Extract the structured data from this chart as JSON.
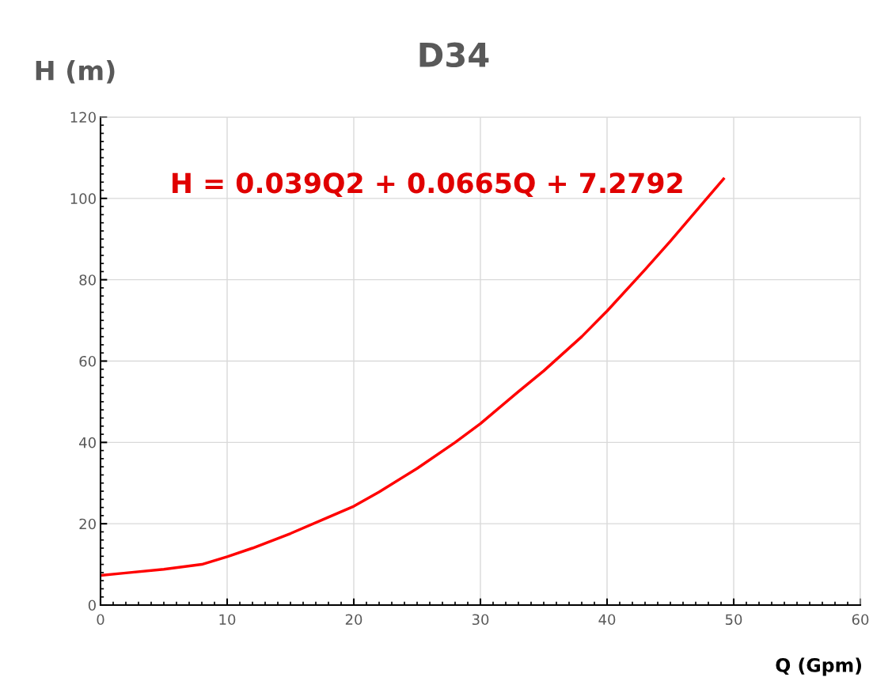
{
  "chart_data": {
    "type": "line",
    "title": "D34",
    "xlabel": "Q (Gpm)",
    "ylabel": "H (m)",
    "annotations": [
      "H = 0.039Q2 + 0.0665Q + 7.2792"
    ],
    "x": [
      0,
      2,
      5,
      8,
      10,
      12,
      15,
      18,
      20,
      22,
      25,
      28,
      30,
      33,
      35,
      38,
      40,
      43,
      45,
      47,
      49.2
    ],
    "series": [
      {
        "color": "#ff0000",
        "values": [
          7.3,
          7.9,
          8.8,
          10.0,
          11.9,
          14.0,
          17.6,
          21.6,
          24.3,
          27.8,
          33.6,
          40.0,
          44.6,
          52.5,
          57.6,
          66.0,
          72.3,
          82.5,
          89.5,
          96.8,
          104.8
        ]
      }
    ],
    "xlim": [
      0,
      60
    ],
    "ylim": [
      0,
      120
    ],
    "xticks": [
      0,
      10,
      20,
      30,
      40,
      50,
      60
    ],
    "yticks": [
      0,
      20,
      40,
      60,
      80,
      100,
      120
    ],
    "grid": true,
    "marker": "none",
    "line_style": "solid",
    "legend": false
  }
}
